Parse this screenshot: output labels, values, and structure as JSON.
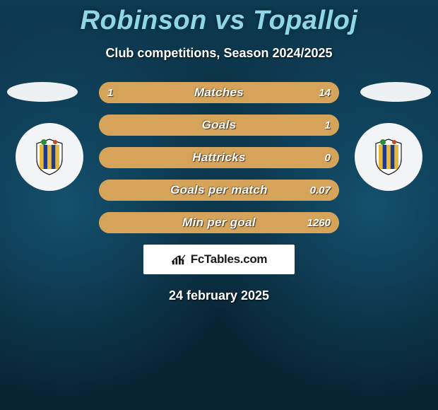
{
  "title": "Robinson vs Topalloj",
  "subtitle": "Club competitions, Season 2024/2025",
  "date": "24 february 2025",
  "brand": "FcTables.com",
  "colors": {
    "left_fill": "#d6a35a",
    "right_fill": "#d6a35a",
    "track": "#d6a35a",
    "bg_top": "#0d3b52",
    "bg_bottom": "#082434",
    "title": "#8fd6e6"
  },
  "crest": {
    "stripe_a": "#e8b83a",
    "stripe_b": "#1f3a8a",
    "accent_green": "#2e8b3d",
    "ring": "#f2f4f5"
  },
  "bars": [
    {
      "label": "Matches",
      "left": "1",
      "right": "14",
      "left_pct": 6,
      "right_pct": 94
    },
    {
      "label": "Goals",
      "left": "",
      "right": "1",
      "left_pct": 0,
      "right_pct": 100
    },
    {
      "label": "Hattricks",
      "left": "",
      "right": "0",
      "left_pct": 0,
      "right_pct": 0
    },
    {
      "label": "Goals per match",
      "left": "",
      "right": "0.07",
      "left_pct": 0,
      "right_pct": 100
    },
    {
      "label": "Min per goal",
      "left": "",
      "right": "1260",
      "left_pct": 0,
      "right_pct": 100
    }
  ]
}
